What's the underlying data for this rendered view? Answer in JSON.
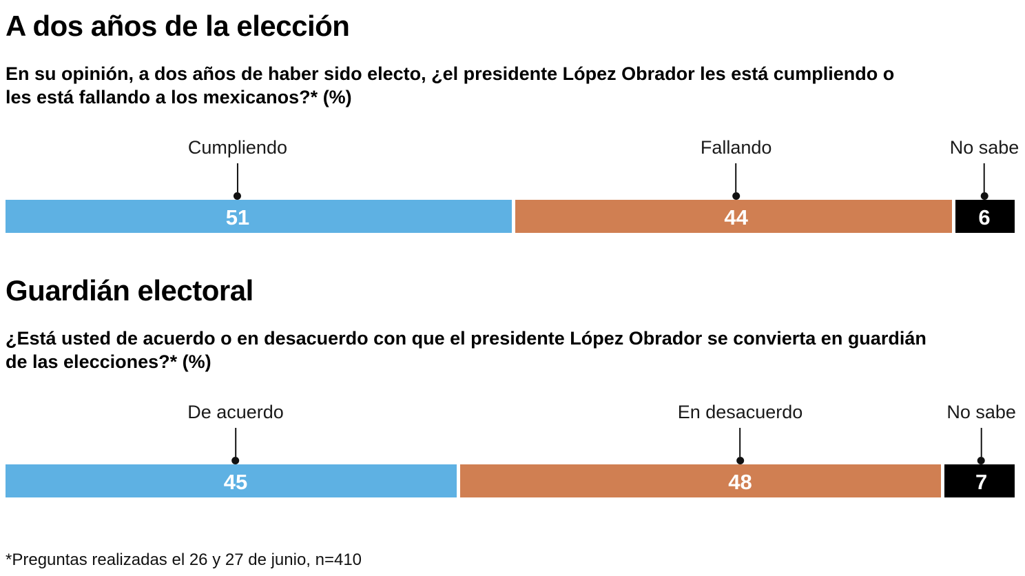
{
  "colors": {
    "agree_blue": "#5EB1E3",
    "disagree_orange": "#D07F52",
    "no_sabe_black": "#000000",
    "bar_value_text": "#FFFFFF",
    "leader": "#111111"
  },
  "chart_data": [
    {
      "type": "bar",
      "orientation": "horizontal",
      "stacked": true,
      "title": "A dos años de la elección",
      "question_lines": [
        "En su opinión, a dos años de haber sido electo, ¿el presidente López Obrador les está cumpliendo o",
        "les está fallando a los mexicanos?*  (%)"
      ],
      "unit": "%",
      "xlim": [
        0,
        101
      ],
      "segments": [
        {
          "label": "Cumpliendo",
          "value": 51,
          "color": "#5EB1E3",
          "anchor_pct": 23.0
        },
        {
          "label": "Fallando",
          "value": 44,
          "color": "#D07F52",
          "anchor_pct": 72.4
        },
        {
          "label": "No sabe",
          "value": 6,
          "color": "#000000",
          "anchor_pct": 97.0
        }
      ]
    },
    {
      "type": "bar",
      "orientation": "horizontal",
      "stacked": true,
      "title": "Guardián electoral",
      "question_lines": [
        "¿Está usted de acuerdo o en desacuerdo con que el presidente López Obrador se convierta en guardián",
        "de las elecciones?*  (%)"
      ],
      "unit": "%",
      "xlim": [
        0,
        100
      ],
      "segments": [
        {
          "label": "De acuerdo",
          "value": 45,
          "color": "#5EB1E3",
          "anchor_pct": 22.8
        },
        {
          "label": "En desacuerdo",
          "value": 48,
          "color": "#D07F52",
          "anchor_pct": 72.8
        },
        {
          "label": "No sabe",
          "value": 7,
          "color": "#000000",
          "anchor_pct": 96.7
        }
      ]
    }
  ],
  "footnote": "*Preguntas realizadas el 26 y 27 de junio, n=410"
}
